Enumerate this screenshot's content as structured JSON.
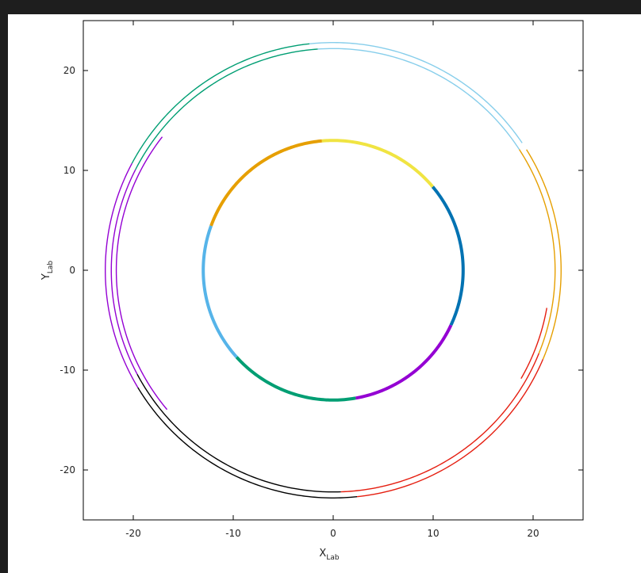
{
  "chart_data": {
    "type": "line",
    "xlabel": "X",
    "xlabel_sub": "Lab",
    "ylabel": "Y",
    "ylabel_sub": "Lab",
    "xlim": [
      -25,
      25
    ],
    "ylim": [
      -25,
      25
    ],
    "x_ticks": [
      -20,
      -10,
      0,
      10,
      20
    ],
    "y_ticks": [
      -20,
      -10,
      0,
      10,
      20
    ],
    "grid": false,
    "series": [
      {
        "circle": "inner",
        "radius": 13,
        "start_deg": 40,
        "end_deg": 95,
        "color": "#f0e442"
      },
      {
        "circle": "inner",
        "radius": 13,
        "start_deg": 95,
        "end_deg": 160,
        "color": "#e69f00"
      },
      {
        "circle": "inner",
        "radius": 13,
        "start_deg": 160,
        "end_deg": 222,
        "color": "#56b4e9"
      },
      {
        "circle": "inner",
        "radius": 13,
        "start_deg": 222,
        "end_deg": 280,
        "color": "#009e73"
      },
      {
        "circle": "inner",
        "radius": 13,
        "start_deg": 280,
        "end_deg": 335,
        "color": "#9400d3"
      },
      {
        "circle": "inner",
        "radius": 13,
        "start_deg": 335,
        "end_deg": 400,
        "color": "#0072b2"
      },
      {
        "circle": "outer_a",
        "radius": 22.2,
        "start_deg": 33,
        "end_deg": 94,
        "color": "#87ceeb"
      },
      {
        "circle": "outer_a",
        "radius": 22.2,
        "start_deg": 94,
        "end_deg": 153,
        "color": "#009e73"
      },
      {
        "circle": "outer_a",
        "radius": 22.2,
        "start_deg": 153,
        "end_deg": 208,
        "color": "#9400d3"
      },
      {
        "circle": "outer_a",
        "radius": 22.2,
        "start_deg": 208,
        "end_deg": 272,
        "color": "#000000"
      },
      {
        "circle": "outer_a",
        "radius": 22.2,
        "start_deg": 272,
        "end_deg": 338,
        "color": "#e51e10"
      },
      {
        "circle": "outer_a",
        "radius": 22.2,
        "start_deg": 338,
        "end_deg": 393,
        "color": "#e69f00"
      },
      {
        "circle": "outer_b",
        "radius": 22.8,
        "start_deg": 34,
        "end_deg": 96,
        "color": "#87ceeb"
      },
      {
        "circle": "outer_b",
        "radius": 22.8,
        "start_deg": 96,
        "end_deg": 152,
        "color": "#009e73"
      },
      {
        "circle": "outer_b",
        "radius": 22.8,
        "start_deg": 152,
        "end_deg": 211,
        "color": "#9400d3"
      },
      {
        "circle": "outer_b",
        "radius": 22.8,
        "start_deg": 211,
        "end_deg": 276,
        "color": "#000000"
      },
      {
        "circle": "outer_b",
        "radius": 22.8,
        "start_deg": 276,
        "end_deg": 337,
        "color": "#e51e10"
      },
      {
        "circle": "outer_b",
        "radius": 22.8,
        "start_deg": 337,
        "end_deg": 392,
        "color": "#e69f00"
      },
      {
        "circle": "outer_c",
        "radius": 21.7,
        "start_deg": 142,
        "end_deg": 220,
        "color": "#9400d3"
      },
      {
        "circle": "outer_c",
        "radius": 21.7,
        "start_deg": 330,
        "end_deg": 350,
        "color": "#e51e10"
      }
    ]
  }
}
